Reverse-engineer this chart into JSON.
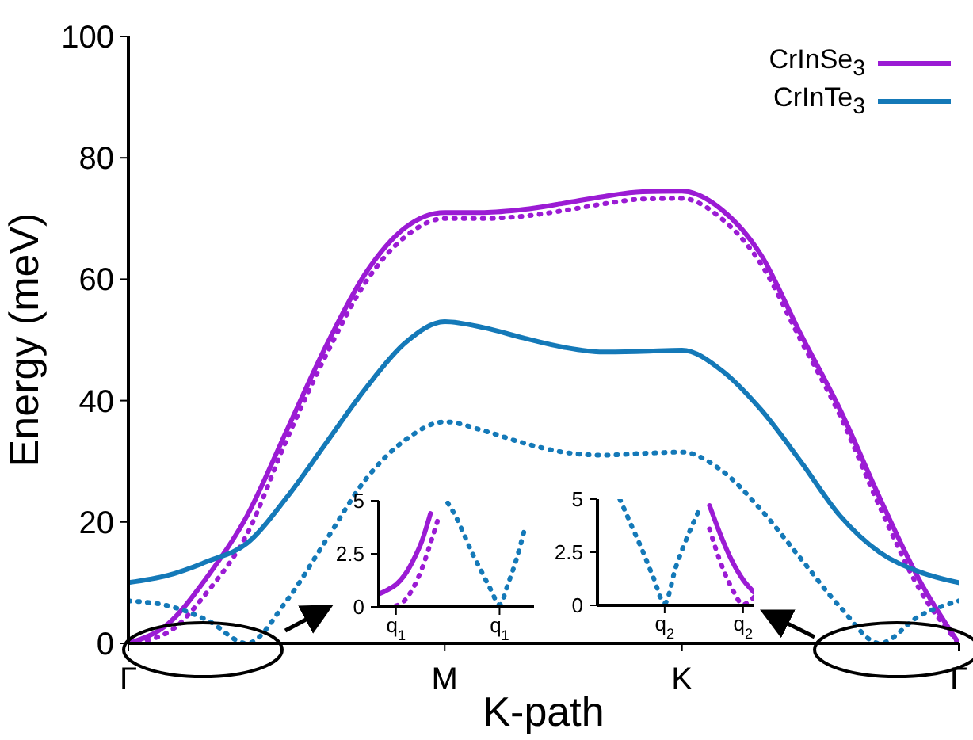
{
  "chart_data": [
    {
      "type": "line",
      "xlabel": "K-path",
      "ylabel": "Energy (meV)",
      "categories": [
        "Γ",
        null,
        null,
        null,
        null,
        null,
        null,
        null,
        "M",
        null,
        null,
        null,
        null,
        null,
        "K",
        null,
        null,
        null,
        null,
        null,
        null,
        "Γ"
      ],
      "ylim": [
        0,
        100
      ],
      "yticks": [
        0,
        20,
        40,
        60,
        80,
        100
      ],
      "grid": false,
      "legend": "top right",
      "marker": "none",
      "series": [
        {
          "name": "CrInSe$_{3}$",
          "color": "#9b1bd4",
          "line_style": "solid",
          "values": [
            0,
            3.2,
            11,
            21,
            35,
            49,
            61,
            68.5,
            71,
            71,
            71.5,
            72.5,
            73.6,
            74.4,
            74.5,
            71.5,
            64,
            51,
            38.5,
            24,
            10.5,
            0
          ]
        },
        {
          "color": "#9b1bd4",
          "line_style": "dotted",
          "values": [
            0,
            1.8,
            8.5,
            18,
            33.5,
            47.5,
            59.5,
            67,
            70,
            70,
            70.4,
            71.3,
            72.4,
            73.2,
            73.3,
            70,
            62.5,
            50,
            37.5,
            22.5,
            9,
            0
          ]
        },
        {
          "name": "CrInTe$_{3}$",
          "color": "#1479b8",
          "line_style": "solid",
          "values": [
            10,
            11.2,
            13.5,
            16.5,
            24,
            33,
            42,
            49.5,
            53,
            52,
            50.3,
            48.8,
            48,
            48.1,
            48.3,
            45,
            38.5,
            30,
            21,
            15,
            11.8,
            10
          ]
        },
        {
          "color": "#1479b8",
          "line_style": "dotted",
          "values": [
            7,
            6.2,
            3.8,
            0,
            7,
            17,
            27,
            33.5,
            36.5,
            35,
            33,
            31.5,
            31,
            31.3,
            31.5,
            28.5,
            22,
            14,
            6,
            0,
            4.5,
            7
          ]
        }
      ]
    },
    {
      "type": "line",
      "categories": [
        null,
        null,
        "q$_{1}$",
        null,
        null,
        null,
        null,
        null,
        null,
        null,
        null,
        null,
        null,
        null,
        "q$_{1}$",
        null,
        null,
        null,
        null
      ],
      "ylim": [
        0,
        5
      ],
      "yticks": [
        0,
        2.5,
        5
      ],
      "grid": false,
      "legend": false,
      "marker": "none",
      "series": [
        {
          "color": "#9b1bd4",
          "line_style": "solid",
          "values": [
            0.6,
            0.8,
            1.05,
            1.5,
            2.2,
            3.1,
            4.4,
            null,
            null,
            null,
            null,
            null,
            null,
            null,
            null,
            null,
            null,
            null,
            null
          ]
        },
        {
          "color": "#9b1bd4",
          "line_style": "dotted",
          "values": [
            null,
            null,
            0.05,
            0.3,
            0.9,
            1.8,
            3,
            4.3,
            null,
            null,
            null,
            null,
            null,
            null,
            null,
            null,
            null,
            null,
            null
          ]
        },
        {
          "color": "#1479b8",
          "line_style": "dotted",
          "values": [
            null,
            null,
            null,
            null,
            null,
            null,
            null,
            null,
            4.9,
            4.2,
            3.3,
            2.4,
            1.6,
            0.8,
            0.1,
            1.1,
            2.3,
            3.8,
            null
          ]
        }
      ]
    },
    {
      "type": "line",
      "categories": [
        null,
        null,
        null,
        null,
        null,
        null,
        "q$_{2}$",
        null,
        null,
        null,
        null,
        null,
        null,
        "q$_{2}$",
        null
      ],
      "ylim": [
        0,
        5
      ],
      "yticks": [
        0,
        2.5,
        5
      ],
      "grid": false,
      "legend": false,
      "marker": "none",
      "series": [
        {
          "color": "#1479b8",
          "line_style": "dotted",
          "values": [
            null,
            null,
            5,
            3.8,
            2.6,
            1.3,
            0.1,
            1.8,
            3.2,
            4.4,
            null,
            null,
            null,
            null,
            null
          ]
        },
        {
          "color": "#9b1bd4",
          "line_style": "solid",
          "values": [
            null,
            null,
            null,
            null,
            null,
            null,
            null,
            null,
            null,
            null,
            4.7,
            3.3,
            2.1,
            1.2,
            0.6
          ]
        },
        {
          "color": "#9b1bd4",
          "line_style": "dotted",
          "values": [
            null,
            null,
            null,
            null,
            null,
            null,
            null,
            null,
            null,
            null,
            3.6,
            2,
            0.8,
            0.05,
            0.4
          ]
        }
      ]
    }
  ]
}
